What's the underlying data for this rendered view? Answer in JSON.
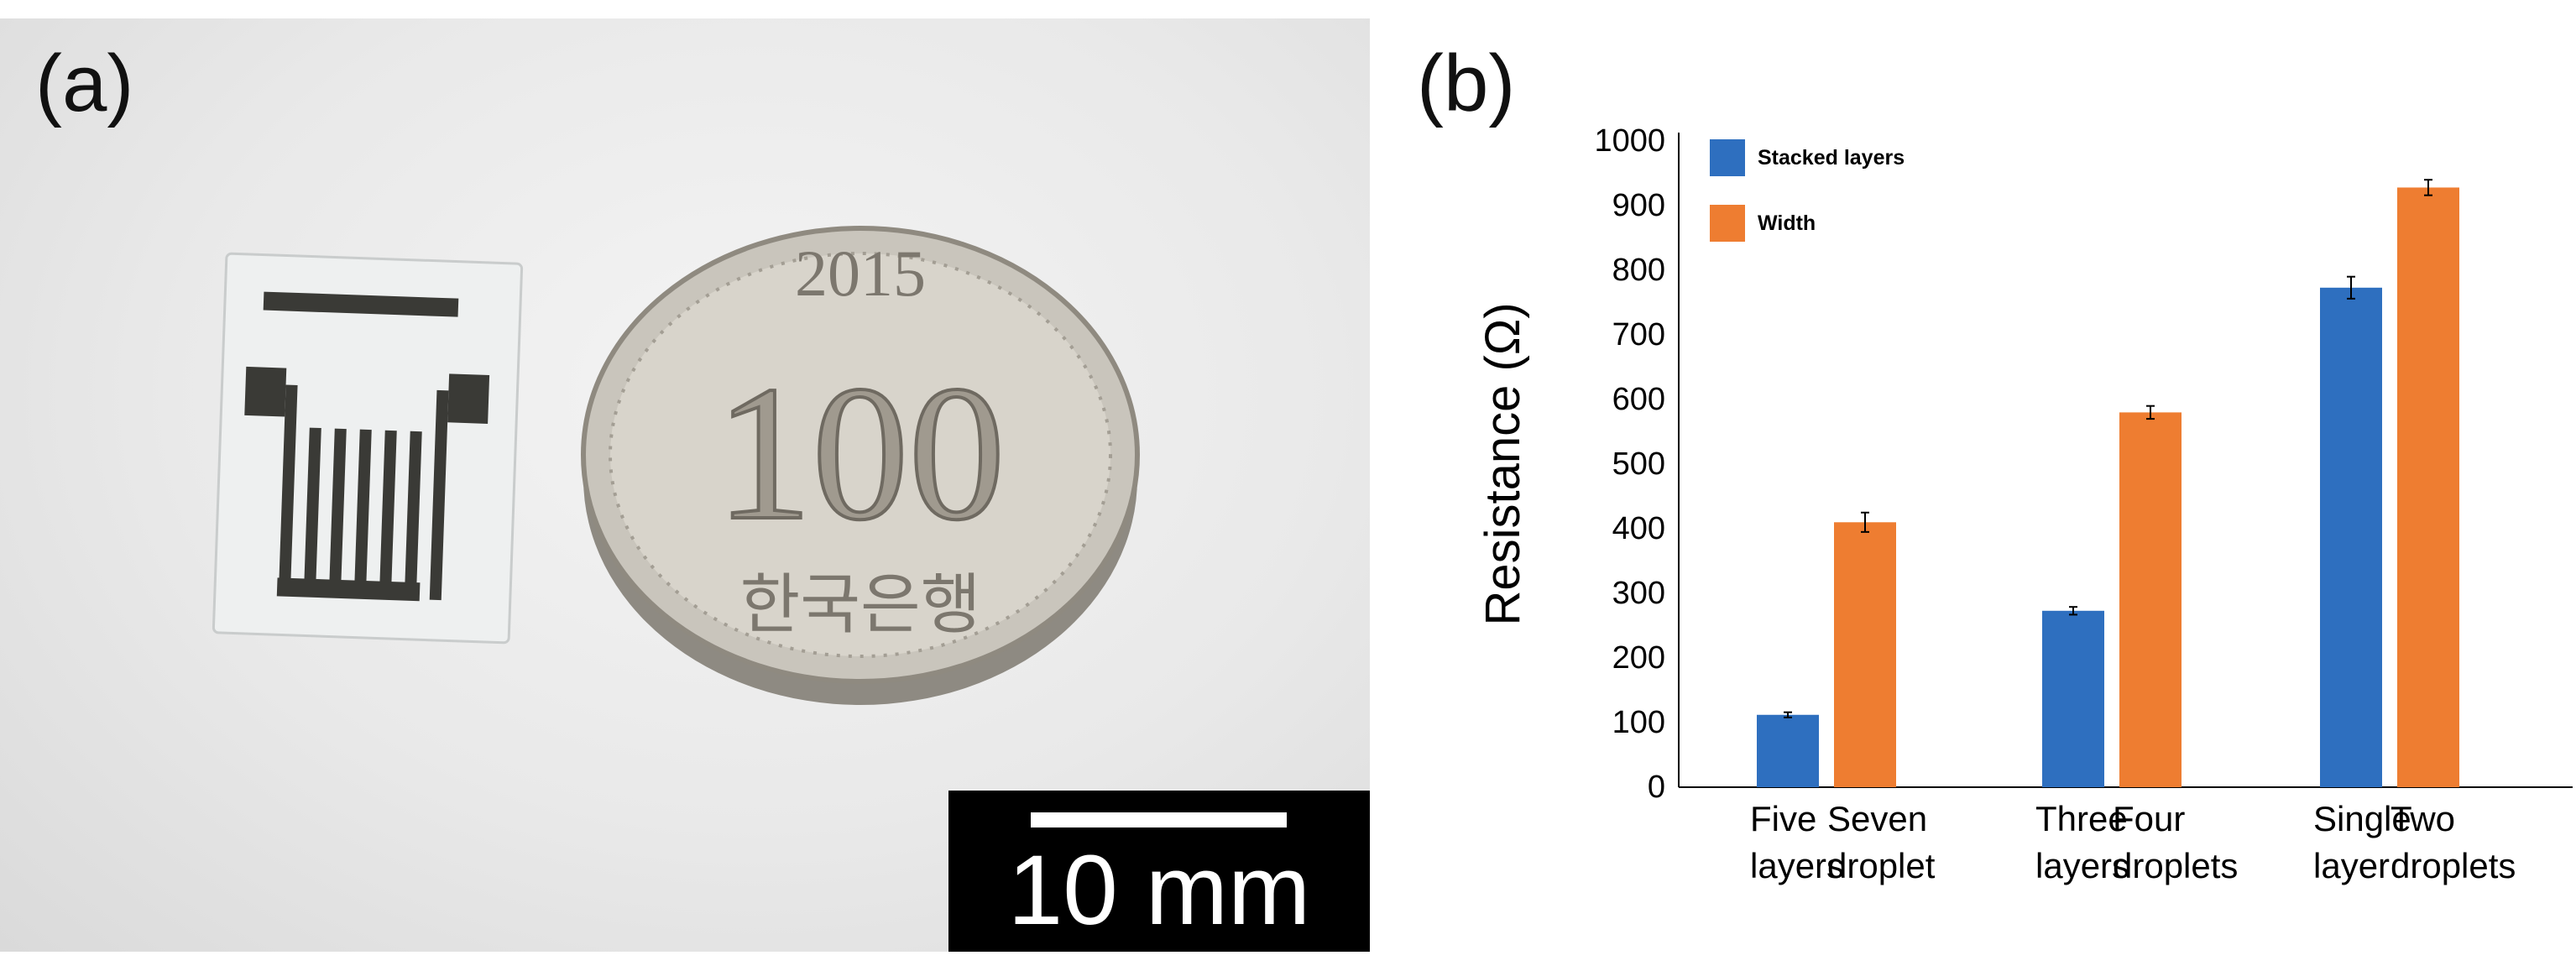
{
  "panel_a": {
    "label": "(a)",
    "scale_label": "10 mm",
    "coin": {
      "year": "2015",
      "value": "100",
      "text": "한국은행"
    }
  },
  "panel_b": {
    "label": "(b)"
  },
  "colors": {
    "stacked": "#2e6fbf",
    "width": "#ee7d31",
    "axis": "#000000"
  },
  "chart_data": {
    "type": "bar",
    "ylabel": "Resistance (Ω)",
    "xlabel": "",
    "ylim": [
      0,
      1000
    ],
    "yticks": [
      0,
      100,
      200,
      300,
      400,
      500,
      600,
      700,
      800,
      900,
      1000
    ],
    "grid": false,
    "legend_position": "top-left",
    "groups": [
      {
        "bars": [
          {
            "series": "Stacked layers",
            "label": [
              "Five",
              "layers"
            ],
            "value": 112,
            "error": 4
          },
          {
            "series": "Width",
            "label": [
              "Seven",
              "droplet"
            ],
            "value": 410,
            "error": 15
          }
        ]
      },
      {
        "bars": [
          {
            "series": "Stacked layers",
            "label": [
              "Three",
              "layers"
            ],
            "value": 273,
            "error": 6
          },
          {
            "series": "Width",
            "label": [
              "Four",
              "droplets"
            ],
            "value": 580,
            "error": 10
          }
        ]
      },
      {
        "bars": [
          {
            "series": "Stacked layers",
            "label": [
              "Single",
              "layer"
            ],
            "value": 773,
            "error": 17
          },
          {
            "series": "Width",
            "label": [
              "Two",
              "droplets"
            ],
            "value": 928,
            "error": 12
          }
        ]
      }
    ],
    "series": [
      {
        "name": "Stacked layers",
        "color": "#2e6fbf"
      },
      {
        "name": "Width",
        "color": "#ee7d31"
      }
    ]
  }
}
